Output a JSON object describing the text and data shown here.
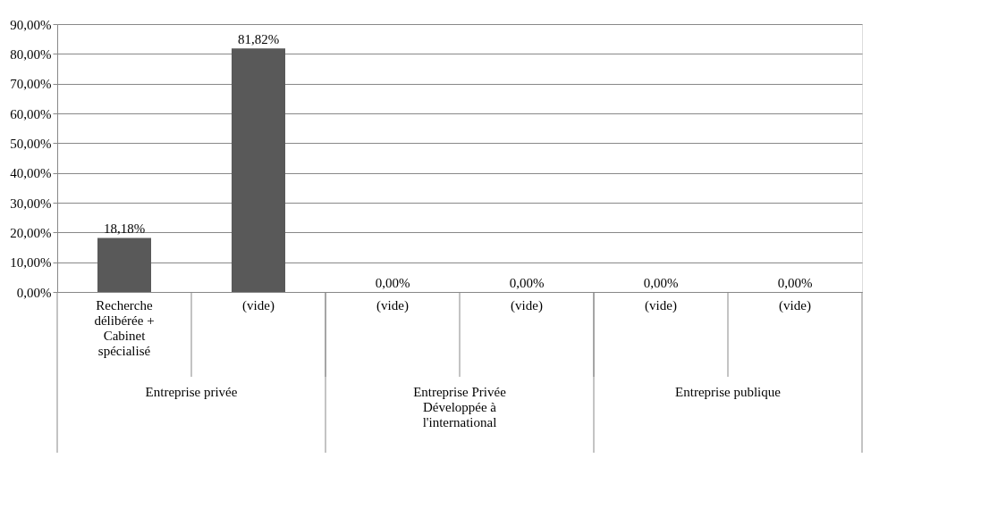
{
  "chart_data": {
    "type": "bar",
    "categories": [
      "Recherche délibérée + Cabinet spécialisé",
      "(vide)",
      "(vide)",
      "(vide)",
      "(vide)",
      "(vide)"
    ],
    "values": [
      18.18,
      81.82,
      0,
      0,
      0,
      0
    ],
    "value_labels": [
      "18,18%",
      "81,82%",
      "0,00%",
      "0,00%",
      "0,00%",
      "0,00%"
    ],
    "color": "#595959",
    "ylim": [
      0,
      90
    ],
    "yticks": [
      {
        "value": 0,
        "label": "0,00%"
      },
      {
        "value": 10,
        "label": "10,00%"
      },
      {
        "value": 20,
        "label": "20,00%"
      },
      {
        "value": 30,
        "label": "30,00%"
      },
      {
        "value": 40,
        "label": "40,00%"
      },
      {
        "value": 50,
        "label": "50,00%"
      },
      {
        "value": 60,
        "label": "60,00%"
      },
      {
        "value": 70,
        "label": "70,00%"
      },
      {
        "value": 80,
        "label": "80,00%"
      },
      {
        "value": 90,
        "label": "90,00%"
      }
    ],
    "grid": "y",
    "annotations": [
      "Entreprise privée",
      "Entreprise Privée Développée à l'international",
      "Entreprise publique"
    ]
  }
}
